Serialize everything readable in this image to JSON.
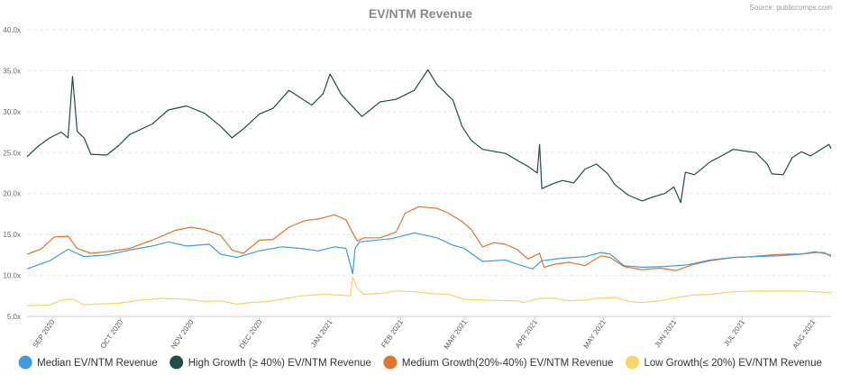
{
  "chart_data": {
    "type": "line",
    "title": "EV/NTM Revenue",
    "source": "Source: publiccomps.com",
    "xlabel": "",
    "ylabel": "",
    "ylim": [
      5,
      40
    ],
    "y_ticks": [
      "5.0x",
      "10.0x",
      "15.0x",
      "20.0x",
      "25.0x",
      "30.0x",
      "35.0x",
      "40.0x"
    ],
    "y_tick_values": [
      5,
      10,
      15,
      20,
      25,
      30,
      35,
      40
    ],
    "x_range": [
      0,
      353
    ],
    "x_ticks": [
      {
        "label": "SEP 2020",
        "day": 11
      },
      {
        "label": "OCT 2020",
        "day": 41
      },
      {
        "label": "NOV 2020",
        "day": 72
      },
      {
        "label": "DEC 2020",
        "day": 102
      },
      {
        "label": "JAN 2021",
        "day": 133
      },
      {
        "label": "FEB 2021",
        "day": 164
      },
      {
        "label": "MAR 2021",
        "day": 192
      },
      {
        "label": "APR 2021",
        "day": 223
      },
      {
        "label": "MAY 2021",
        "day": 253
      },
      {
        "label": "JUN 2021",
        "day": 284
      },
      {
        "label": "JUL 2021",
        "day": 314
      },
      {
        "label": "AUG 2021",
        "day": 345
      }
    ],
    "series": [
      {
        "name": "Median EV/NTM Revenue",
        "color": "#3d9be0",
        "points": [
          [
            0,
            10.8
          ],
          [
            10,
            11.8
          ],
          [
            18,
            13.2
          ],
          [
            25,
            12.3
          ],
          [
            35,
            12.5
          ],
          [
            45,
            13.1
          ],
          [
            55,
            13.6
          ],
          [
            62,
            14.1
          ],
          [
            70,
            13.6
          ],
          [
            80,
            13.8
          ],
          [
            85,
            12.6
          ],
          [
            92,
            12.2
          ],
          [
            102,
            13.0
          ],
          [
            112,
            13.5
          ],
          [
            120,
            13.3
          ],
          [
            128,
            13.0
          ],
          [
            135,
            13.5
          ],
          [
            140,
            13.3
          ],
          [
            143,
            10.2
          ],
          [
            144,
            13.3
          ],
          [
            146,
            14.1
          ],
          [
            160,
            14.5
          ],
          [
            170,
            15.2
          ],
          [
            180,
            14.6
          ],
          [
            187,
            13.7
          ],
          [
            192,
            13.3
          ],
          [
            200,
            11.7
          ],
          [
            210,
            11.9
          ],
          [
            215,
            11.4
          ],
          [
            222,
            10.8
          ],
          [
            226,
            11.8
          ],
          [
            235,
            12.1
          ],
          [
            245,
            12.3
          ],
          [
            252,
            12.8
          ],
          [
            256,
            12.6
          ],
          [
            262,
            11.2
          ],
          [
            270,
            11.0
          ],
          [
            280,
            11.1
          ],
          [
            290,
            11.3
          ],
          [
            300,
            11.9
          ],
          [
            310,
            12.2
          ],
          [
            320,
            12.3
          ],
          [
            330,
            12.4
          ],
          [
            340,
            12.6
          ],
          [
            346,
            12.9
          ],
          [
            353,
            12.5
          ]
        ]
      },
      {
        "name": "High Growth (≥ 40%) EV/NTM Revenue",
        "color": "#1e4d4b",
        "points": [
          [
            0,
            24.5
          ],
          [
            5,
            25.8
          ],
          [
            10,
            26.8
          ],
          [
            15,
            27.5
          ],
          [
            18,
            26.8
          ],
          [
            20,
            34.3
          ],
          [
            22,
            27.6
          ],
          [
            25,
            26.8
          ],
          [
            28,
            24.8
          ],
          [
            35,
            24.7
          ],
          [
            40,
            25.8
          ],
          [
            45,
            27.2
          ],
          [
            55,
            28.5
          ],
          [
            62,
            30.2
          ],
          [
            70,
            30.7
          ],
          [
            78,
            29.8
          ],
          [
            85,
            28.2
          ],
          [
            90,
            26.8
          ],
          [
            95,
            27.9
          ],
          [
            102,
            29.7
          ],
          [
            108,
            30.4
          ],
          [
            115,
            32.6
          ],
          [
            120,
            31.7
          ],
          [
            125,
            30.8
          ],
          [
            130,
            32.2
          ],
          [
            133,
            34.6
          ],
          [
            138,
            32.1
          ],
          [
            142,
            30.9
          ],
          [
            147,
            29.4
          ],
          [
            155,
            31.2
          ],
          [
            162,
            31.5
          ],
          [
            170,
            32.6
          ],
          [
            176,
            35.1
          ],
          [
            180,
            33.3
          ],
          [
            187,
            31.4
          ],
          [
            191,
            28.2
          ],
          [
            195,
            26.5
          ],
          [
            200,
            25.4
          ],
          [
            210,
            24.9
          ],
          [
            215,
            24.1
          ],
          [
            220,
            23.3
          ],
          [
            224,
            22.5
          ],
          [
            225,
            26.0
          ],
          [
            226,
            20.6
          ],
          [
            230,
            21.1
          ],
          [
            235,
            21.6
          ],
          [
            240,
            21.3
          ],
          [
            245,
            23.0
          ],
          [
            250,
            23.6
          ],
          [
            255,
            22.4
          ],
          [
            258,
            21.1
          ],
          [
            264,
            19.8
          ],
          [
            270,
            19.1
          ],
          [
            275,
            19.6
          ],
          [
            280,
            20.0
          ],
          [
            284,
            20.8
          ],
          [
            287,
            18.9
          ],
          [
            289,
            22.6
          ],
          [
            293,
            22.3
          ],
          [
            300,
            23.9
          ],
          [
            305,
            24.6
          ],
          [
            310,
            25.4
          ],
          [
            320,
            25.0
          ],
          [
            325,
            23.6
          ],
          [
            327,
            22.4
          ],
          [
            332,
            22.3
          ],
          [
            336,
            24.4
          ],
          [
            340,
            25.1
          ],
          [
            344,
            24.6
          ],
          [
            348,
            25.3
          ],
          [
            352,
            26.0
          ],
          [
            353,
            25.5
          ]
        ]
      },
      {
        "name": "Medium Growth(20%-40%) EV/NTM Revenue",
        "color": "#e0752b",
        "points": [
          [
            0,
            12.6
          ],
          [
            6,
            13.2
          ],
          [
            12,
            14.7
          ],
          [
            18,
            14.8
          ],
          [
            22,
            13.3
          ],
          [
            28,
            12.7
          ],
          [
            35,
            12.9
          ],
          [
            45,
            13.3
          ],
          [
            55,
            14.3
          ],
          [
            65,
            15.5
          ],
          [
            72,
            15.9
          ],
          [
            78,
            15.6
          ],
          [
            85,
            14.9
          ],
          [
            90,
            13.1
          ],
          [
            95,
            12.7
          ],
          [
            102,
            14.3
          ],
          [
            108,
            14.4
          ],
          [
            115,
            15.9
          ],
          [
            122,
            16.7
          ],
          [
            128,
            16.9
          ],
          [
            135,
            17.4
          ],
          [
            140,
            16.8
          ],
          [
            143,
            15.2
          ],
          [
            145,
            14.2
          ],
          [
            148,
            14.6
          ],
          [
            155,
            14.6
          ],
          [
            162,
            15.3
          ],
          [
            166,
            17.6
          ],
          [
            172,
            18.4
          ],
          [
            180,
            18.2
          ],
          [
            185,
            17.6
          ],
          [
            191,
            16.6
          ],
          [
            195,
            15.6
          ],
          [
            200,
            13.5
          ],
          [
            205,
            14.0
          ],
          [
            210,
            13.8
          ],
          [
            215,
            13.2
          ],
          [
            220,
            12.0
          ],
          [
            222,
            12.3
          ],
          [
            225,
            12.7
          ],
          [
            227,
            11.0
          ],
          [
            232,
            11.4
          ],
          [
            238,
            11.6
          ],
          [
            245,
            11.2
          ],
          [
            252,
            12.4
          ],
          [
            256,
            12.2
          ],
          [
            262,
            11.1
          ],
          [
            270,
            10.7
          ],
          [
            278,
            10.9
          ],
          [
            285,
            10.6
          ],
          [
            292,
            11.3
          ],
          [
            300,
            11.8
          ],
          [
            310,
            12.2
          ],
          [
            318,
            12.3
          ],
          [
            326,
            12.5
          ],
          [
            334,
            12.6
          ],
          [
            340,
            12.6
          ],
          [
            346,
            12.8
          ],
          [
            350,
            12.8
          ],
          [
            353,
            12.3
          ]
        ]
      },
      {
        "name": "Low Growth(≤ 20%) EV/NTM Revenue",
        "color": "#f5d46a",
        "points": [
          [
            0,
            6.3
          ],
          [
            10,
            6.4
          ],
          [
            15,
            7.0
          ],
          [
            20,
            7.1
          ],
          [
            25,
            6.4
          ],
          [
            30,
            6.5
          ],
          [
            40,
            6.6
          ],
          [
            50,
            7.0
          ],
          [
            60,
            7.2
          ],
          [
            70,
            7.1
          ],
          [
            78,
            6.8
          ],
          [
            85,
            6.9
          ],
          [
            92,
            6.5
          ],
          [
            98,
            6.7
          ],
          [
            105,
            6.8
          ],
          [
            112,
            7.1
          ],
          [
            120,
            7.5
          ],
          [
            130,
            7.7
          ],
          [
            138,
            7.6
          ],
          [
            142,
            7.5
          ],
          [
            143,
            9.8
          ],
          [
            145,
            8.4
          ],
          [
            148,
            7.7
          ],
          [
            155,
            7.8
          ],
          [
            162,
            8.1
          ],
          [
            170,
            8.0
          ],
          [
            178,
            7.8
          ],
          [
            185,
            7.7
          ],
          [
            192,
            7.1
          ],
          [
            200,
            7.0
          ],
          [
            210,
            6.9
          ],
          [
            215,
            6.9
          ],
          [
            218,
            6.7
          ],
          [
            225,
            7.2
          ],
          [
            232,
            7.2
          ],
          [
            238,
            6.9
          ],
          [
            245,
            7.0
          ],
          [
            250,
            7.2
          ],
          [
            258,
            7.3
          ],
          [
            265,
            6.8
          ],
          [
            270,
            6.7
          ],
          [
            278,
            6.9
          ],
          [
            285,
            7.3
          ],
          [
            292,
            7.6
          ],
          [
            300,
            7.7
          ],
          [
            310,
            8.0
          ],
          [
            320,
            8.1
          ],
          [
            330,
            8.1
          ],
          [
            340,
            8.1
          ],
          [
            346,
            8.0
          ],
          [
            353,
            7.9
          ]
        ]
      }
    ],
    "legend": [
      {
        "label": "Median EV/NTM Revenue",
        "color": "#3d9be0"
      },
      {
        "label": "High Growth (≥ 40%) EV/NTM Revenue",
        "color": "#1e4d4b"
      },
      {
        "label": "Medium Growth(20%-40%) EV/NTM Revenue",
        "color": "#e0752b"
      },
      {
        "label": "Low Growth(≤ 20%) EV/NTM Revenue",
        "color": "#f5d46a"
      }
    ]
  }
}
